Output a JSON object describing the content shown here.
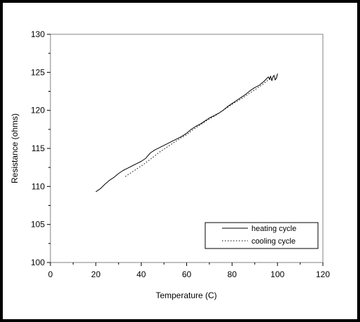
{
  "chart_data": {
    "type": "line",
    "title": "",
    "xlabel": "Temperature (C)",
    "ylabel": "Resistance (ohms)",
    "xlim": [
      0,
      120
    ],
    "ylim": [
      100,
      130
    ],
    "xticks": [
      0,
      20,
      40,
      60,
      80,
      100,
      120
    ],
    "yticks": [
      100,
      105,
      110,
      115,
      120,
      125,
      130
    ],
    "grid": false,
    "legend_position": "bottom-right",
    "series": [
      {
        "name": "heating cycle",
        "style": "solid",
        "color": "#000000",
        "x": [
          20,
          22,
          24,
          26,
          28,
          30,
          32,
          34,
          36,
          38,
          40,
          42,
          44,
          46,
          48,
          50,
          52,
          54,
          56,
          58,
          60,
          62,
          64,
          66,
          68,
          70,
          72,
          74,
          76,
          78,
          80,
          82,
          84,
          86,
          88,
          90,
          92,
          94,
          95,
          96,
          96.5,
          97,
          97.5,
          98,
          98.5,
          99,
          99.5,
          100,
          99.6,
          99.2
        ],
        "y": [
          109.3,
          109.7,
          110.3,
          110.8,
          111.2,
          111.7,
          112.1,
          112.4,
          112.7,
          113.0,
          113.3,
          113.7,
          114.4,
          114.8,
          115.1,
          115.4,
          115.7,
          116.0,
          116.3,
          116.6,
          117.0,
          117.5,
          117.9,
          118.2,
          118.6,
          119.0,
          119.3,
          119.6,
          120.0,
          120.5,
          120.9,
          121.3,
          121.7,
          122.1,
          122.6,
          123.0,
          123.3,
          123.8,
          124.1,
          124.4,
          124.1,
          124.5,
          123.9,
          124.4,
          124.6,
          124.0,
          124.2,
          124.8,
          124.3,
          124.1
        ]
      },
      {
        "name": "cooling cycle",
        "style": "dotted",
        "color": "#000000",
        "x": [
          33,
          36,
          39,
          42,
          45,
          48,
          51,
          54,
          57,
          60,
          63,
          66,
          69,
          72,
          75,
          78,
          81,
          84,
          87,
          90,
          93,
          95,
          96,
          97
        ],
        "y": [
          111.3,
          111.9,
          112.5,
          113.1,
          113.8,
          114.5,
          115.1,
          115.7,
          116.3,
          116.8,
          117.5,
          118.1,
          118.7,
          119.2,
          119.8,
          120.4,
          121.0,
          121.5,
          122.1,
          122.7,
          123.3,
          123.8,
          124.0,
          124.1
        ]
      }
    ]
  }
}
